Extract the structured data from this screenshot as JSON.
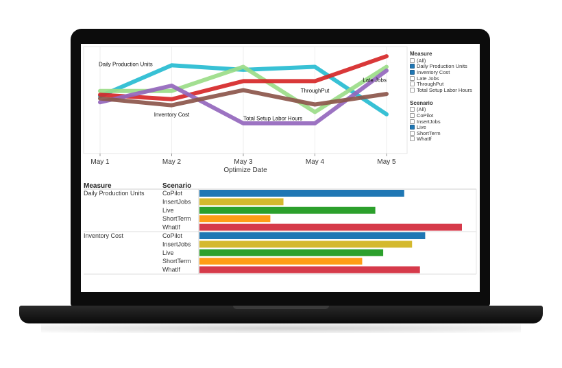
{
  "chart_data": [
    {
      "type": "line",
      "xlabel": "Optimize Date",
      "ylabel": "",
      "x": [
        "May 1",
        "May 2",
        "May 3",
        "May 4",
        "May 5"
      ],
      "ylim": [
        0,
        100
      ],
      "grid": true,
      "legend_position": "right",
      "series": [
        {
          "name": "Daily Production Units",
          "color": "#27bcd1",
          "values": [
            56,
            97,
            91,
            95,
            32
          ]
        },
        {
          "name": "ThroughPut",
          "color": "#9bdc88",
          "values": [
            63,
            63,
            95,
            35,
            95
          ]
        },
        {
          "name": "Late Jobs",
          "color": "#d62728",
          "values": [
            58,
            52,
            76,
            76,
            109
          ]
        },
        {
          "name": "Total Setup Labor Hours",
          "color": "#9467bd",
          "values": [
            48,
            70,
            20,
            20,
            90
          ]
        },
        {
          "name": "Inventory Cost",
          "color": "#8c564b",
          "values": [
            53,
            44,
            64,
            45,
            59
          ]
        }
      ],
      "annotations": [
        {
          "text": "Daily Production Units",
          "x": "May 1",
          "y": 96
        },
        {
          "text": "Inventory Cost",
          "x": "May 2",
          "y": 29
        },
        {
          "text": "Total Setup Labor Hours",
          "x": "May 3",
          "y": 24
        },
        {
          "text": "ThroughPut",
          "x": "May 4",
          "y": 61
        },
        {
          "text": "Late Jobs",
          "x": "May 5",
          "y": 75
        }
      ]
    },
    {
      "type": "bar",
      "orientation": "horizontal",
      "header_measure": "Measure",
      "header_scenario": "Scenario",
      "xlim": [
        0,
        100
      ],
      "groups": [
        {
          "measure": "Daily Production Units",
          "rows": [
            {
              "scenario": "CoPilot",
              "value": 78,
              "color": "#1f77b4"
            },
            {
              "scenario": "InsertJobs",
              "value": 32,
              "color": "#d4b92e"
            },
            {
              "scenario": "Live",
              "value": 67,
              "color": "#2ca02c"
            },
            {
              "scenario": "ShortTerm",
              "value": 27,
              "color": "#ff9d16"
            },
            {
              "scenario": "WhatIf",
              "value": 100,
              "color": "#d63a4a"
            }
          ]
        },
        {
          "measure": "Inventory Cost",
          "rows": [
            {
              "scenario": "CoPilot",
              "value": 86,
              "color": "#1f77b4"
            },
            {
              "scenario": "InsertJobs",
              "value": 81,
              "color": "#d4b92e"
            },
            {
              "scenario": "Live",
              "value": 70,
              "color": "#2ca02c"
            },
            {
              "scenario": "ShortTerm",
              "value": 62,
              "color": "#ff9d16"
            },
            {
              "scenario": "WhatIf",
              "value": 84,
              "color": "#d63a4a"
            }
          ]
        }
      ]
    }
  ],
  "legend": {
    "measure_title": "Measure",
    "measure_items": [
      {
        "label": "(All)",
        "checked": false
      },
      {
        "label": "Daily Production Units",
        "checked": true
      },
      {
        "label": "Inventory Cost",
        "checked": true
      },
      {
        "label": "Late Jobs",
        "checked": false
      },
      {
        "label": "ThroughPut",
        "checked": false
      },
      {
        "label": "Total Setup Labor Hours",
        "checked": false
      }
    ],
    "scenario_title": "Scenario",
    "scenario_items": [
      {
        "label": "(All)",
        "checked": false
      },
      {
        "label": "CoPilot",
        "checked": false
      },
      {
        "label": "InsertJobs",
        "checked": false
      },
      {
        "label": "Live",
        "checked": true
      },
      {
        "label": "ShortTerm",
        "checked": false
      },
      {
        "label": "WhatIf",
        "checked": false
      }
    ]
  }
}
